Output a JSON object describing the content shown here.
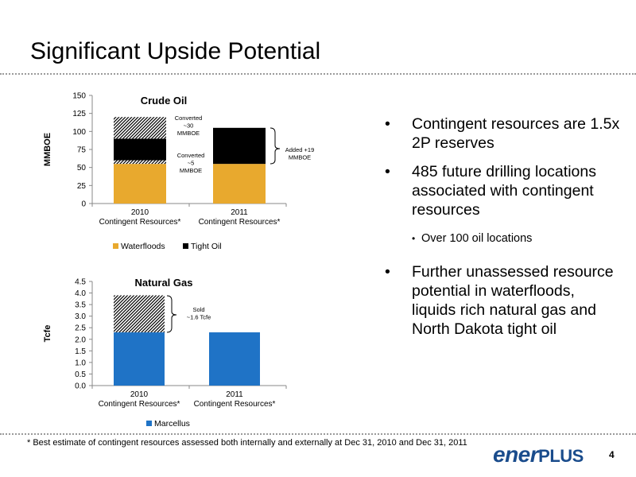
{
  "slide": {
    "title": "Significant Upside Potential",
    "footnote": "* Best estimate of contingent resources assessed both internally and externally at Dec 31, 2010 and Dec 31, 2011",
    "page_number": "4",
    "logo_part1": "ener",
    "logo_part2": "PLUS"
  },
  "bullets": [
    {
      "text": "Contingent resources are 1.5x 2P reserves"
    },
    {
      "text": "485 future drilling locations associated with contingent resources"
    },
    {
      "sub": "Over 100 oil locations"
    },
    {
      "text": "Further unassessed resource potential in waterfloods, liquids rich natural gas and North Dakota tight oil"
    }
  ],
  "colors": {
    "waterfloods": "#E8A92E",
    "tight_oil": "#000000",
    "marcellus": "#1F73C6"
  },
  "chart_data": [
    {
      "type": "bar",
      "stacked": true,
      "title": "Crude Oil",
      "ylabel": "MMBOE",
      "ylim": [
        0,
        150
      ],
      "yticks": [
        0,
        25,
        50,
        75,
        100,
        125,
        150
      ],
      "categories": [
        [
          "2010",
          "Contingent Resources*"
        ],
        [
          "2011",
          "Contingent Resources*"
        ]
      ],
      "series": [
        {
          "name": "Waterfloods",
          "values": [
            55,
            55
          ]
        },
        {
          "name": "Converted ~5 MMBOE (hatched)",
          "values": [
            5,
            0
          ]
        },
        {
          "name": "Tight Oil",
          "values": [
            30,
            50
          ]
        },
        {
          "name": "Converted ~30 MMBOE (hatched)",
          "values": [
            30,
            0
          ]
        }
      ],
      "legend": [
        "Waterfloods",
        "Tight Oil"
      ],
      "annotations": [
        {
          "lines": [
            "Converted",
            "~30",
            "MMBOE"
          ]
        },
        {
          "lines": [
            "Converted",
            "~5",
            "MMBOE"
          ]
        },
        {
          "lines": [
            "Added +19",
            "MMBOE"
          ]
        }
      ]
    },
    {
      "type": "bar",
      "stacked": true,
      "title": "Natural Gas",
      "ylabel": "Tcfe",
      "ylim": [
        0,
        4.5
      ],
      "yticks": [
        0,
        0.5,
        1.0,
        1.5,
        2.0,
        2.5,
        3.0,
        3.5,
        4.0,
        4.5
      ],
      "categories": [
        [
          "2010",
          "Contingent Resources*"
        ],
        [
          "2011",
          "Contingent Resources*"
        ]
      ],
      "series": [
        {
          "name": "Marcellus",
          "values": [
            2.3,
            2.3
          ]
        },
        {
          "name": "Sold ~1.6 Tcfe (hatched)",
          "values": [
            1.6,
            0
          ]
        }
      ],
      "legend": [
        "Marcellus"
      ],
      "annotations": [
        {
          "lines": [
            "Sold",
            "~1.6 Tcfe"
          ]
        }
      ]
    }
  ]
}
